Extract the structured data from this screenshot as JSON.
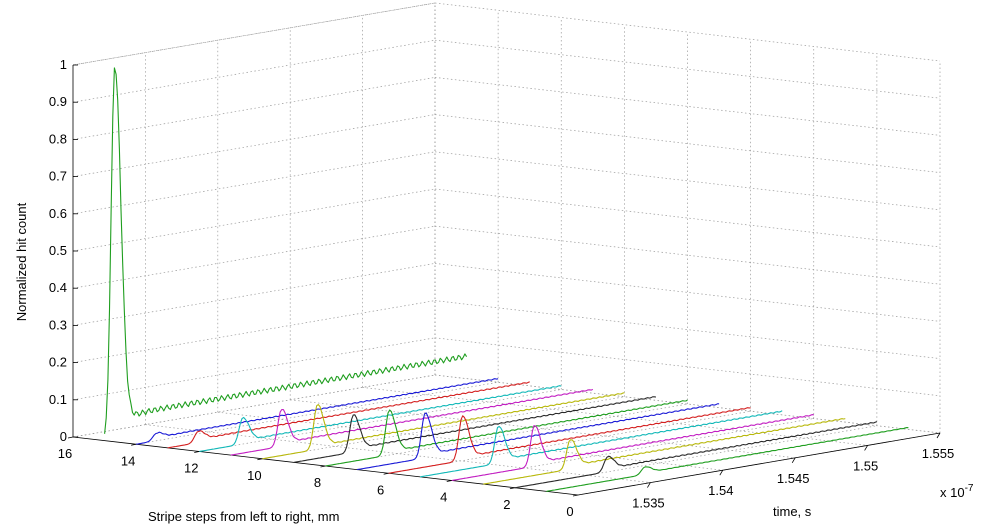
{
  "chart_data": {
    "type": "line",
    "title": "",
    "zlabel": "Normalized hit count",
    "xlabel": "Stripe steps from left to right, mm",
    "ylabel": "time, s",
    "y_exponent_label": "x 10",
    "y_exponent_power": "-7",
    "grid": true,
    "xlim": [
      0,
      16
    ],
    "ylim": [
      1.53,
      1.555
    ],
    "zlim": [
      0,
      1
    ],
    "x_ticks": [
      "16",
      "14",
      "12",
      "10",
      "8",
      "6",
      "4",
      "2",
      "0"
    ],
    "y_ticks": [
      "1.535",
      "1.54",
      "1.545",
      "1.55",
      "1.555"
    ],
    "z_ticks": [
      "0",
      "0.1",
      "0.2",
      "0.3",
      "0.4",
      "0.5",
      "0.6",
      "0.7",
      "0.8",
      "0.9",
      "1"
    ],
    "colors": [
      "#1f9e1f",
      "#1a1ad6",
      "#d42020",
      "#12b8b8",
      "#c21ec2",
      "#b8b80c",
      "#2a2a2a"
    ],
    "series": [
      {
        "x": 15,
        "peak_time": 1.5307,
        "peak_value": 1.0,
        "tail": 0.06
      },
      {
        "x": 14,
        "peak_time": 1.5314,
        "peak_value": 0.02,
        "tail": 0.01
      },
      {
        "x": 13,
        "peak_time": 1.5321,
        "peak_value": 0.03,
        "tail": 0.01
      },
      {
        "x": 12,
        "peak_time": 1.533,
        "peak_value": 0.07,
        "tail": 0.01
      },
      {
        "x": 11,
        "peak_time": 1.5335,
        "peak_value": 0.1,
        "tail": 0.01
      },
      {
        "x": 10,
        "peak_time": 1.5338,
        "peak_value": 0.12,
        "tail": 0.01
      },
      {
        "x": 9,
        "peak_time": 1.5341,
        "peak_value": 0.1,
        "tail": 0.01
      },
      {
        "x": 8,
        "peak_time": 1.5344,
        "peak_value": 0.12,
        "tail": 0.01
      },
      {
        "x": 7,
        "peak_time": 1.5347,
        "peak_value": 0.12,
        "tail": 0.01
      },
      {
        "x": 6,
        "peak_time": 1.5351,
        "peak_value": 0.12,
        "tail": 0.01
      },
      {
        "x": 5,
        "peak_time": 1.5354,
        "peak_value": 0.1,
        "tail": 0.01
      },
      {
        "x": 4,
        "peak_time": 1.5357,
        "peak_value": 0.11,
        "tail": 0.01
      },
      {
        "x": 3,
        "peak_time": 1.536,
        "peak_value": 0.08,
        "tail": 0.01
      },
      {
        "x": 2,
        "peak_time": 1.5364,
        "peak_value": 0.04,
        "tail": 0.01
      },
      {
        "x": 1,
        "peak_time": 1.5368,
        "peak_value": 0.02,
        "tail": 0.005
      }
    ]
  }
}
